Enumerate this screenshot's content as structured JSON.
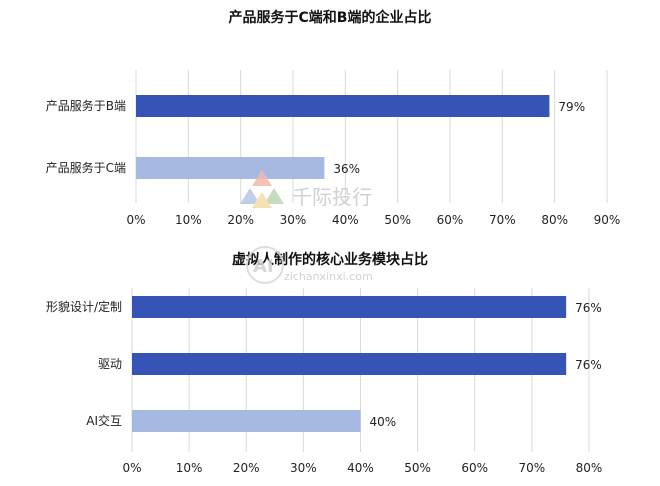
{
  "watermark": {
    "brand": "千际投行",
    "url": "zichanxinxi.com",
    "logo_text": "AI"
  },
  "chart_data": [
    {
      "type": "bar",
      "orientation": "horizontal",
      "title": "产品服务于C端和B端的企业占比",
      "categories": [
        "产品服务于B端",
        "产品服务于C端"
      ],
      "values": [
        79,
        36
      ],
      "data_labels": [
        "79%",
        "36%"
      ],
      "bar_colors": [
        "#3654b5",
        "#a6b9e2"
      ],
      "xlim": [
        0,
        90
      ],
      "xticks": [
        0,
        10,
        20,
        30,
        40,
        50,
        60,
        70,
        80,
        90
      ],
      "xtick_labels": [
        "0%",
        "10%",
        "20%",
        "30%",
        "40%",
        "50%",
        "60%",
        "70%",
        "80%",
        "90%"
      ],
      "grid": "vertical"
    },
    {
      "type": "bar",
      "orientation": "horizontal",
      "title": "虚拟人制作的核心业务模块占比",
      "categories": [
        "形貌设计/定制",
        "驱动",
        "AI交互"
      ],
      "values": [
        76,
        76,
        40
      ],
      "data_labels": [
        "76%",
        "76%",
        "40%"
      ],
      "bar_colors": [
        "#3654b5",
        "#3654b5",
        "#a6b9e2"
      ],
      "xlim": [
        0,
        80
      ],
      "xticks": [
        0,
        10,
        20,
        30,
        40,
        50,
        60,
        70,
        80
      ],
      "xtick_labels": [
        "0%",
        "10%",
        "20%",
        "30%",
        "40%",
        "50%",
        "60%",
        "70%",
        "80%"
      ],
      "grid": "vertical"
    }
  ]
}
